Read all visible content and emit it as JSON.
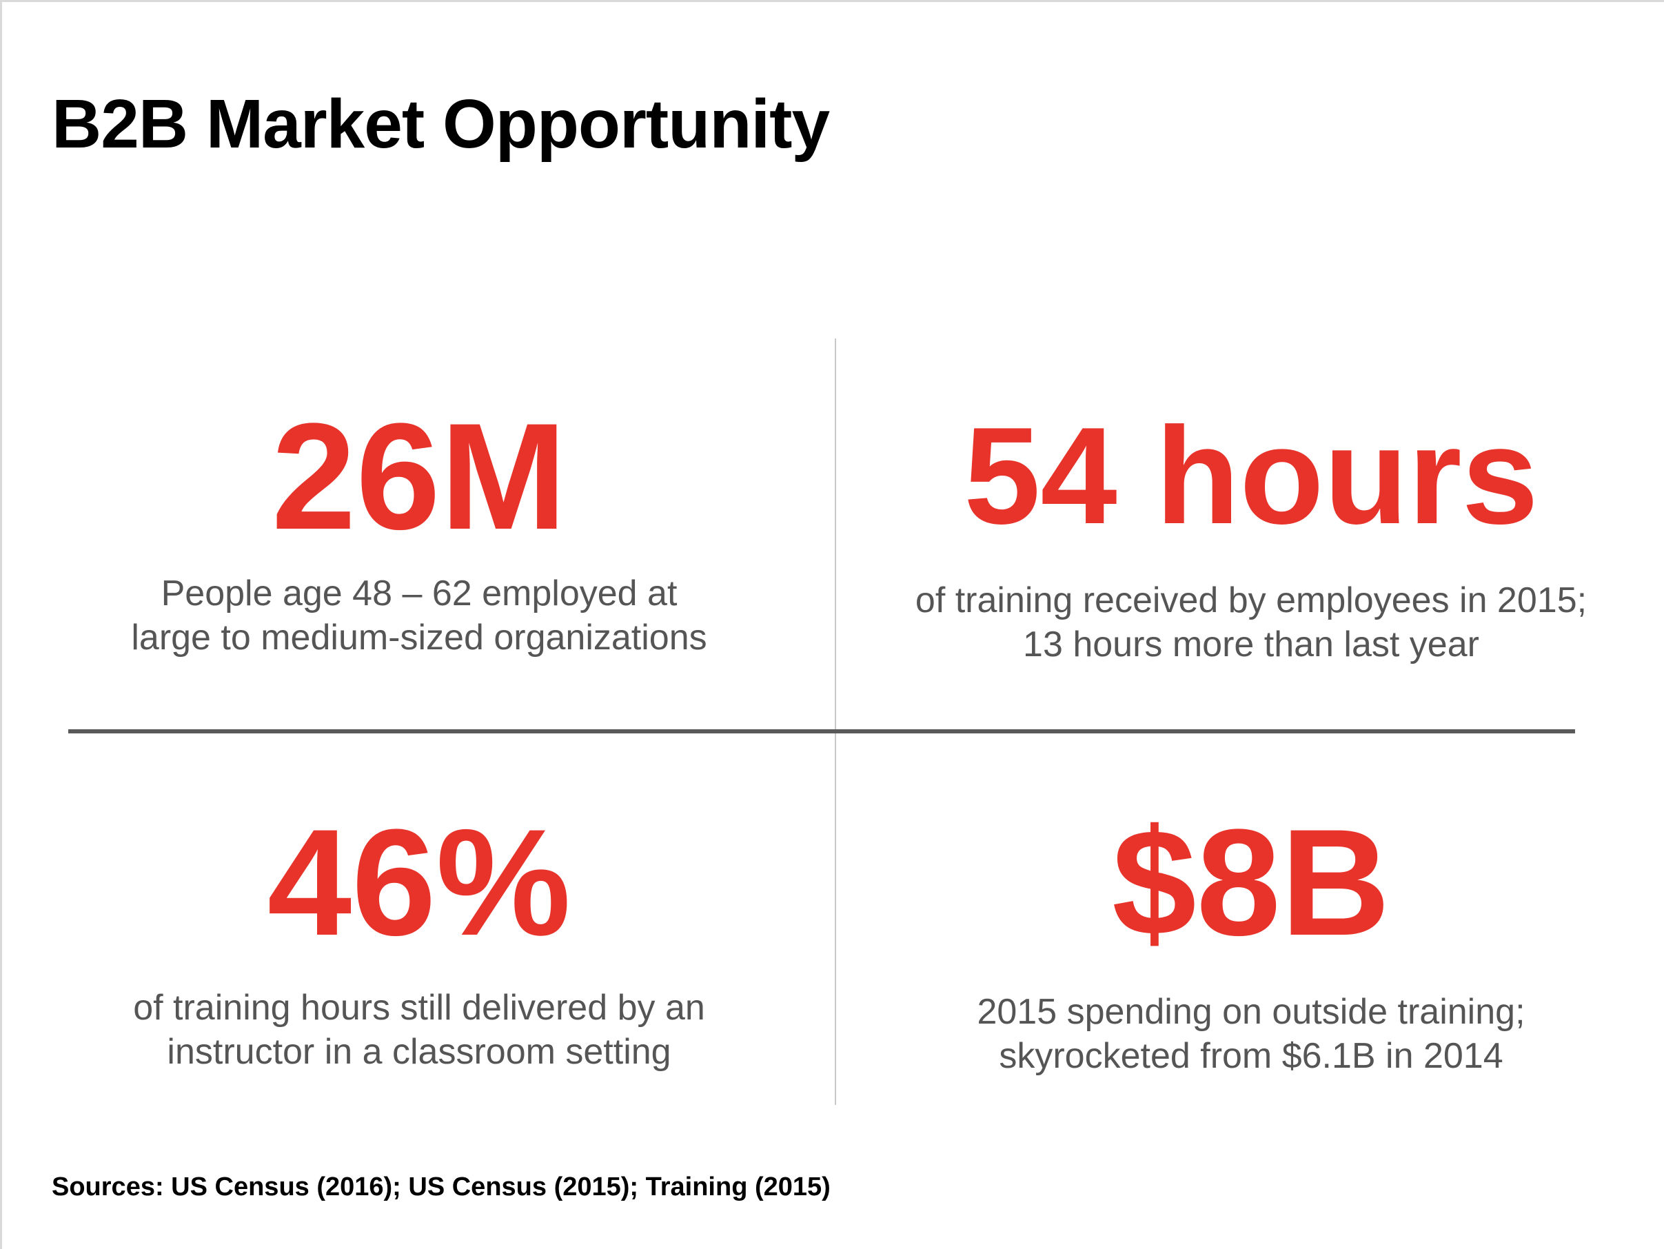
{
  "slide": {
    "title": "B2B Market Opportunity",
    "sources": "Sources: US Census (2016); US Census (2015); Training (2015)"
  },
  "stats": [
    {
      "value": "26M",
      "desc_line1": "People age 48 – 62 employed at",
      "desc_line2": "large to medium-sized organizations"
    },
    {
      "value": "54 hours",
      "desc_line1": "of training received by employees in 2015;",
      "desc_line2": "13 hours more than last year"
    },
    {
      "value": "46%",
      "desc_line1": "of training hours still delivered by an",
      "desc_line2": "instructor in a classroom setting"
    },
    {
      "value": "$8B",
      "desc_line1": "2015 spending on outside training;",
      "desc_line2": "skyrocketed from $6.1B in 2014"
    }
  ],
  "colors": {
    "accent": "#e8332a",
    "text_muted": "#555555",
    "divider": "#5a5a5a"
  }
}
